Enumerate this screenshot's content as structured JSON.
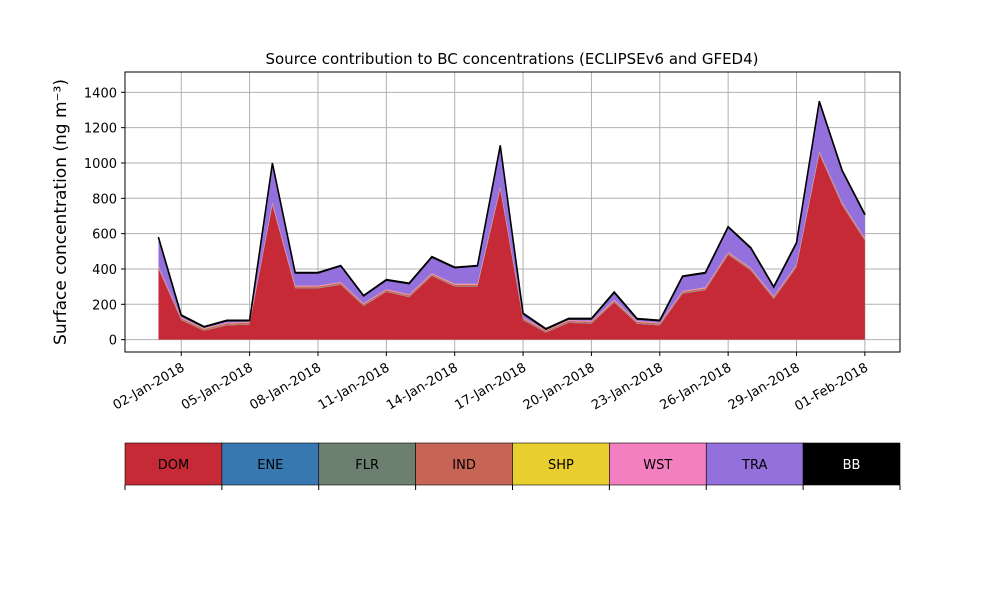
{
  "chart_data": {
    "type": "stacked_area",
    "title": "Source contribution to BC concentrations (ECLIPSEv6 and GFED4)",
    "y_label": "Surface concentration (ng m⁻³)",
    "x": [
      "2018-01-01",
      "2018-01-02",
      "2018-01-03",
      "2018-01-04",
      "2018-01-05",
      "2018-01-06",
      "2018-01-07",
      "2018-01-08",
      "2018-01-09",
      "2018-01-10",
      "2018-01-11",
      "2018-01-12",
      "2018-01-13",
      "2018-01-14",
      "2018-01-15",
      "2018-01-16",
      "2018-01-17",
      "2018-01-18",
      "2018-01-19",
      "2018-01-20",
      "2018-01-21",
      "2018-01-22",
      "2018-01-23",
      "2018-01-24",
      "2018-01-25",
      "2018-01-26",
      "2018-01-27",
      "2018-01-28",
      "2018-01-29",
      "2018-01-30",
      "2018-01-31",
      "2018-02-01"
    ],
    "xlim": [
      "2017-12-30T12:45",
      "2018-02-02T13:00"
    ],
    "xticks": [
      {
        "value": "2018-01-02",
        "label": "02-Jan-2018"
      },
      {
        "value": "2018-01-05",
        "label": "05-Jan-2018"
      },
      {
        "value": "2018-01-08",
        "label": "08-Jan-2018"
      },
      {
        "value": "2018-01-11",
        "label": "11-Jan-2018"
      },
      {
        "value": "2018-01-14",
        "label": "14-Jan-2018"
      },
      {
        "value": "2018-01-17",
        "label": "17-Jan-2018"
      },
      {
        "value": "2018-01-20",
        "label": "20-Jan-2018"
      },
      {
        "value": "2018-01-23",
        "label": "23-Jan-2018"
      },
      {
        "value": "2018-01-26",
        "label": "26-Jan-2018"
      },
      {
        "value": "2018-01-29",
        "label": "29-Jan-2018"
      },
      {
        "value": "2018-02-01",
        "label": "01-Feb-2018"
      }
    ],
    "ylim": [
      -70,
      1515
    ],
    "yticks": [
      0,
      200,
      400,
      600,
      800,
      1000,
      1200,
      1400
    ],
    "grid": true,
    "series": [
      {
        "name": "DOM",
        "color": "#c52a36",
        "values": [
          400,
          110,
          50,
          80,
          85,
          760,
          290,
          290,
          310,
          190,
          270,
          240,
          360,
          300,
          300,
          850,
          110,
          40,
          95,
          90,
          210,
          90,
          80,
          260,
          280,
          480,
          390,
          230,
          410,
          1050,
          760,
          560
        ]
      },
      {
        "name": "ENE",
        "color": "#3778b0",
        "values": [
          1,
          1,
          1,
          1,
          1,
          1,
          1,
          1,
          1,
          1,
          1,
          1,
          1,
          1,
          1,
          1,
          1,
          1,
          1,
          1,
          1,
          1,
          1,
          1,
          1,
          1,
          1,
          1,
          1,
          1,
          1,
          1
        ]
      },
      {
        "name": "FLR",
        "color": "#6d806f",
        "values": [
          2,
          2,
          2,
          2,
          2,
          2,
          2,
          2,
          2,
          2,
          2,
          2,
          2,
          2,
          2,
          2,
          2,
          2,
          2,
          2,
          2,
          2,
          2,
          2,
          2,
          2,
          2,
          2,
          2,
          2,
          2,
          2
        ]
      },
      {
        "name": "IND",
        "color": "#c66555",
        "values": [
          8,
          8,
          8,
          8,
          8,
          8,
          8,
          8,
          8,
          8,
          8,
          8,
          8,
          8,
          8,
          8,
          8,
          8,
          8,
          8,
          8,
          8,
          8,
          8,
          8,
          8,
          8,
          8,
          8,
          8,
          8,
          8
        ]
      },
      {
        "name": "SHP",
        "color": "#e8cf2f",
        "values": [
          1,
          1,
          1,
          1,
          1,
          1,
          1,
          1,
          1,
          1,
          1,
          1,
          1,
          1,
          1,
          1,
          1,
          1,
          1,
          1,
          1,
          1,
          1,
          1,
          1,
          1,
          1,
          1,
          1,
          1,
          1,
          1
        ]
      },
      {
        "name": "WST",
        "color": "#f27fbf",
        "values": [
          4,
          4,
          4,
          4,
          4,
          4,
          4,
          4,
          4,
          4,
          4,
          4,
          4,
          4,
          4,
          4,
          4,
          4,
          4,
          4,
          4,
          4,
          4,
          4,
          4,
          4,
          4,
          4,
          4,
          4,
          4,
          4
        ]
      },
      {
        "name": "TRA",
        "color": "#9370db",
        "values": [
          161,
          11,
          5,
          11,
          6,
          221,
          71,
          71,
          91,
          41,
          51,
          61,
          91,
          91,
          101,
          231,
          21,
          3,
          6,
          11,
          41,
          11,
          11,
          81,
          81,
          141,
          111,
          51,
          121,
          281,
          181,
          131
        ]
      },
      {
        "name": "BB",
        "color": "#000000",
        "values": [
          3,
          3,
          3,
          3,
          3,
          3,
          3,
          3,
          3,
          3,
          3,
          3,
          3,
          3,
          3,
          3,
          3,
          3,
          3,
          3,
          3,
          3,
          3,
          3,
          3,
          3,
          3,
          3,
          3,
          3,
          3,
          3
        ]
      }
    ]
  }
}
